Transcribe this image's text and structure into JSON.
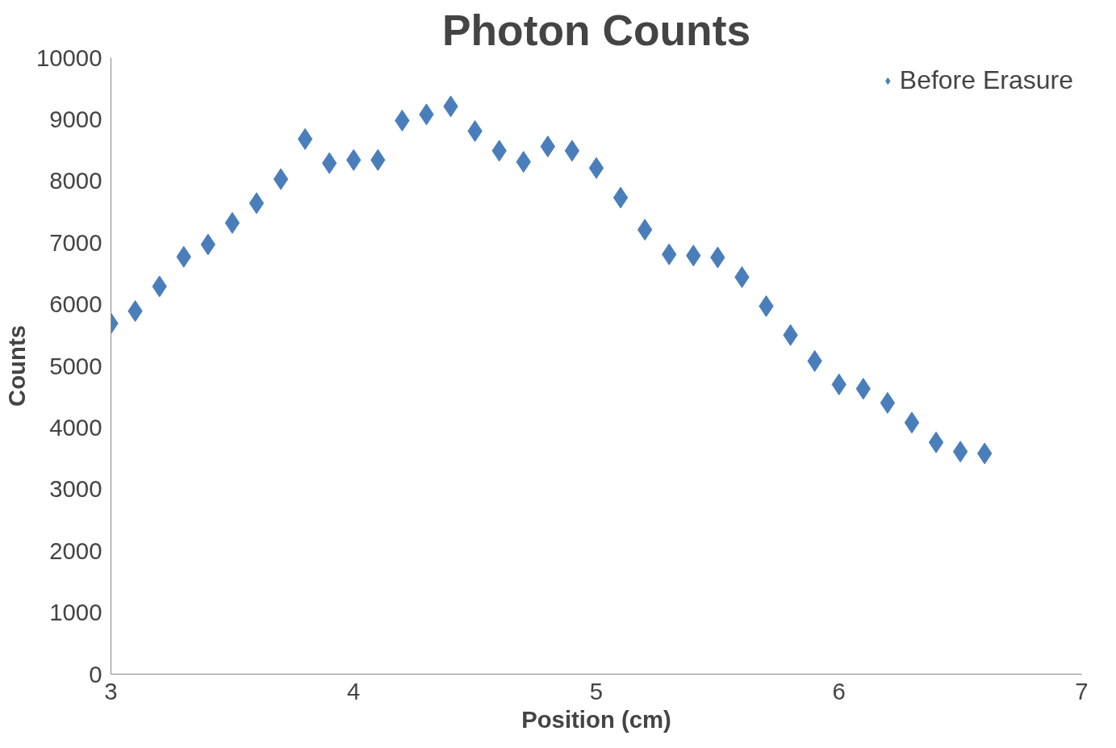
{
  "chart_data": {
    "type": "scatter",
    "title": "Photon Counts",
    "xlabel": "Position (cm)",
    "ylabel": "Counts",
    "x": [
      3.0,
      3.1,
      3.2,
      3.3,
      3.4,
      3.5,
      3.6,
      3.7,
      3.8,
      3.9,
      4.0,
      4.1,
      4.2,
      4.3,
      4.4,
      4.5,
      4.6,
      4.7,
      4.8,
      4.9,
      5.0,
      5.1,
      5.2,
      5.3,
      5.4,
      5.5,
      5.6,
      5.7,
      5.8,
      5.9,
      6.0,
      6.1,
      6.2,
      6.3,
      6.4,
      6.5,
      6.6
    ],
    "series": [
      {
        "name": "Before Erasure",
        "color": "#4a7ebb",
        "values": [
          5690,
          5890,
          6290,
          6770,
          6970,
          7320,
          7640,
          8030,
          8680,
          8290,
          8340,
          8340,
          8980,
          9080,
          9210,
          8810,
          8490,
          8310,
          8560,
          8490,
          8210,
          7730,
          7210,
          6810,
          6790,
          6760,
          6440,
          5970,
          5500,
          5080,
          4700,
          4630,
          4400,
          4080,
          3760,
          3610,
          3580
        ]
      }
    ],
    "xlim": [
      3,
      7
    ],
    "xticks": [
      3,
      4,
      5,
      6,
      7
    ],
    "ylim": [
      0,
      10000
    ],
    "yticks": [
      0,
      1000,
      2000,
      3000,
      4000,
      5000,
      6000,
      7000,
      8000,
      9000,
      10000
    ],
    "grid": false,
    "legend": "top right",
    "marker": "diamond"
  }
}
